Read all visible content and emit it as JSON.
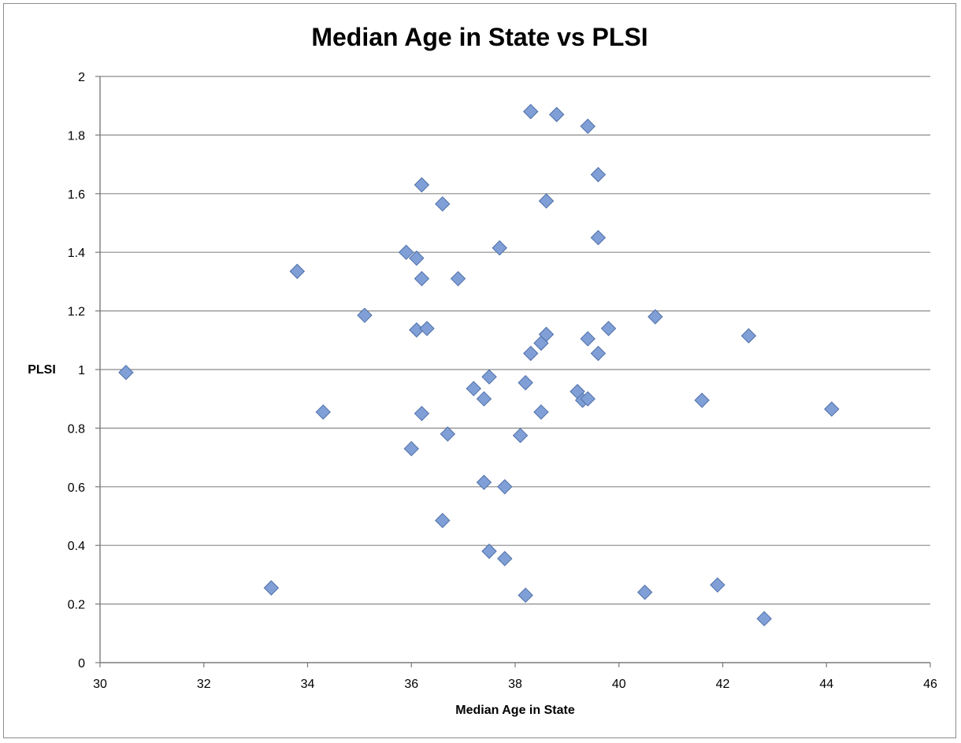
{
  "chart_data": {
    "type": "scatter",
    "title": "Median Age in State vs PLSI",
    "xlabel": "Median Age in State",
    "ylabel": "PLSI",
    "xlim": [
      30,
      46
    ],
    "ylim": [
      0,
      2
    ],
    "x_ticks": [
      30,
      32,
      34,
      36,
      38,
      40,
      42,
      44,
      46
    ],
    "y_ticks": [
      0,
      0.2,
      0.4,
      0.6,
      0.8,
      1,
      1.2,
      1.4,
      1.6,
      1.8,
      2
    ],
    "grid": "horizontal",
    "legend": "none",
    "marker": "diamond",
    "marker_color": "#7f9fd6",
    "series": [
      {
        "points": [
          [
            30.5,
            0.99
          ],
          [
            33.3,
            0.255
          ],
          [
            33.8,
            1.335
          ],
          [
            34.3,
            0.855
          ],
          [
            35.1,
            1.185
          ],
          [
            35.9,
            1.4
          ],
          [
            36.0,
            0.73
          ],
          [
            36.1,
            1.38
          ],
          [
            36.1,
            1.135
          ],
          [
            36.2,
            1.63
          ],
          [
            36.2,
            1.31
          ],
          [
            36.2,
            0.85
          ],
          [
            36.3,
            1.14
          ],
          [
            36.6,
            1.565
          ],
          [
            36.6,
            0.485
          ],
          [
            36.7,
            0.78
          ],
          [
            36.9,
            1.31
          ],
          [
            37.2,
            0.935
          ],
          [
            37.4,
            0.9
          ],
          [
            37.4,
            0.615
          ],
          [
            37.5,
            0.975
          ],
          [
            37.5,
            0.38
          ],
          [
            37.7,
            1.415
          ],
          [
            37.8,
            0.6
          ],
          [
            37.8,
            0.355
          ],
          [
            38.1,
            0.775
          ],
          [
            38.2,
            0.955
          ],
          [
            38.2,
            0.23
          ],
          [
            38.3,
            1.88
          ],
          [
            38.3,
            1.055
          ],
          [
            38.5,
            1.09
          ],
          [
            38.5,
            0.855
          ],
          [
            38.6,
            1.575
          ],
          [
            38.6,
            1.12
          ],
          [
            38.8,
            1.87
          ],
          [
            39.2,
            0.925
          ],
          [
            39.3,
            0.895
          ],
          [
            39.4,
            1.83
          ],
          [
            39.4,
            1.105
          ],
          [
            39.4,
            0.9
          ],
          [
            39.6,
            1.665
          ],
          [
            39.6,
            1.45
          ],
          [
            39.6,
            1.055
          ],
          [
            39.8,
            1.14
          ],
          [
            40.5,
            0.24
          ],
          [
            40.7,
            1.18
          ],
          [
            41.6,
            0.895
          ],
          [
            41.9,
            0.265
          ],
          [
            42.5,
            1.115
          ],
          [
            42.8,
            0.15
          ],
          [
            44.1,
            0.865
          ]
        ]
      }
    ]
  }
}
